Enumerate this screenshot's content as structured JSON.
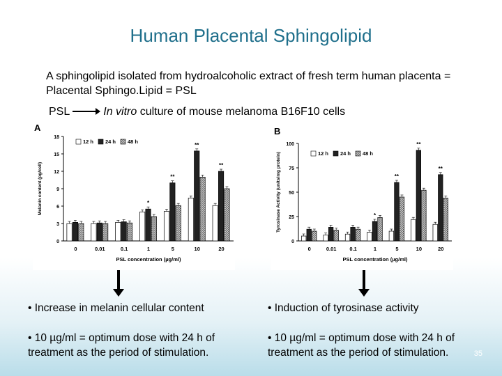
{
  "slide": {
    "title": "Human Placental Sphingolipid",
    "description": "A sphingolipid isolated from hydroalcoholic extract of fresh term human placenta = Placental Sphingo.Lipid = PSL",
    "psl_label": "PSL",
    "psl_target_italic": "In vitro",
    "psl_target_rest": " culture of mouse melanoma B16F10 cells",
    "left_bullet_1": "• Increase in melanin cellular content",
    "left_bullet_2": "• 10 µg/ml = optimum dose with 24 h of treatment as the period of stimulation.",
    "right_bullet_1": "• Induction of tyrosinase activity",
    "right_bullet_2": "• 10 µg/ml = optimum dose with 24 h of treatment as the period of stimulation.",
    "page_number": "35",
    "title_color": "#1f6f8b"
  },
  "chart_data": [
    {
      "type": "bar",
      "panel": "A",
      "ylabel": "Melanin content (pg/cell)",
      "xlabel": "PSL concentration (µg/ml)",
      "ylim": [
        0,
        18
      ],
      "yticks": [
        0,
        3,
        6,
        9,
        12,
        15,
        18
      ],
      "categories": [
        "0",
        "0.01",
        "0.1",
        "1",
        "5",
        "10",
        "20"
      ],
      "legend_position": "top-left",
      "series": [
        {
          "name": "12 h",
          "style": "white",
          "values": [
            3.0,
            3.0,
            3.2,
            5.0,
            5.1,
            7.4,
            6.1
          ]
        },
        {
          "name": "24 h",
          "style": "black",
          "values": [
            3.2,
            3.1,
            3.3,
            5.5,
            10.0,
            15.5,
            12.0
          ]
        },
        {
          "name": "48 h",
          "style": "hatched",
          "values": [
            3.0,
            3.0,
            3.1,
            4.2,
            6.1,
            11.0,
            9.0
          ]
        }
      ],
      "annotations": [
        {
          "category": "1",
          "text": "*"
        },
        {
          "category": "5",
          "text": "**"
        },
        {
          "category": "10",
          "text": "**"
        },
        {
          "category": "20",
          "text": "**"
        }
      ]
    },
    {
      "type": "bar",
      "panel": "B",
      "ylabel": "Tyrosinase Activity (units/mg protein)",
      "xlabel": "PSL concentration (µg/ml)",
      "ylim": [
        0,
        100
      ],
      "yticks": [
        0,
        25,
        50,
        75,
        100
      ],
      "categories": [
        "0",
        "0.01",
        "0.1",
        "1",
        "5",
        "10",
        "20"
      ],
      "legend_position": "top-left",
      "series": [
        {
          "name": "12 h",
          "style": "white",
          "values": [
            5,
            6,
            7,
            9,
            10,
            22,
            17
          ]
        },
        {
          "name": "24 h",
          "style": "black",
          "values": [
            12,
            14,
            14,
            20,
            60,
            93,
            68
          ]
        },
        {
          "name": "48 h",
          "style": "hatched",
          "values": [
            10,
            11,
            12,
            24,
            45,
            52,
            44
          ]
        }
      ],
      "annotations": [
        {
          "category": "1",
          "text": "*"
        },
        {
          "category": "5",
          "text": "**"
        },
        {
          "category": "10",
          "text": "**"
        },
        {
          "category": "20",
          "text": "**"
        }
      ]
    }
  ]
}
